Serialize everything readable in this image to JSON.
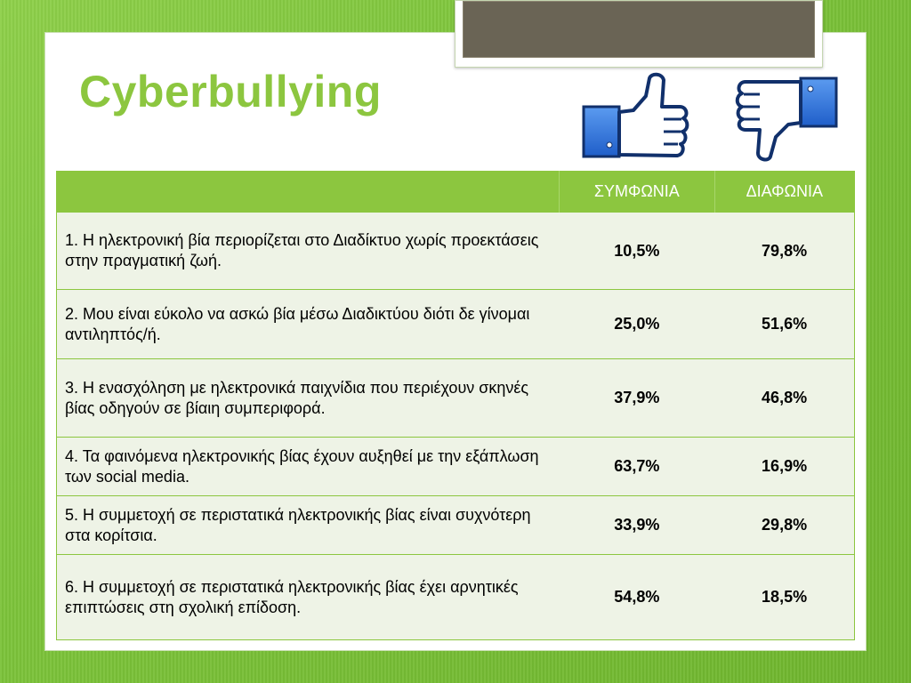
{
  "title": "Cyberbullying",
  "icons": {
    "like": "thumbs-up-icon",
    "dislike": "thumbs-down-icon",
    "accent": "#8cc63f",
    "icon_blue": "#2f6fd6"
  },
  "table": {
    "headers": {
      "statement": "",
      "agree": "ΣΥΜΦΩΝΙΑ",
      "disagree": "ΔΙΑΦΩΝΙΑ"
    },
    "rows": [
      {
        "statement": "1. Η ηλεκτρονική βία περιορίζεται στο Διαδίκτυο χωρίς προεκτάσεις στην πραγματική ζωή.",
        "agree": "10,5%",
        "disagree": "79,8%"
      },
      {
        "statement": "2. Μου είναι εύκολο να ασκώ βία μέσω Διαδικτύου διότι δε γίνομαι αντιληπτός/ή.",
        "agree": "25,0%",
        "disagree": "51,6%"
      },
      {
        "statement": "3. Η ενασχόληση με ηλεκτρονικά παιχνίδια που περιέχουν σκηνές βίας οδηγούν σε βίαιη συμπεριφορά.",
        "agree": "37,9%",
        "disagree": "46,8%"
      },
      {
        "statement": "4. Τα φαινόμενα ηλεκτρονικής βίας έχουν αυξηθεί με την εξάπλωση των social media.",
        "agree": "63,7%",
        "disagree": "16,9%"
      },
      {
        "statement": "5. Η συμμετοχή σε περιστατικά ηλεκτρονικής βίας είναι συχνότερη στα κορίτσια.",
        "agree": "33,9%",
        "disagree": "29,8%"
      },
      {
        "statement": "6. Η συμμετοχή σε περιστατικά ηλεκτρονικής βίας έχει αρνητικές επιπτώσεις στη σχολική επίδοση.",
        "agree": "54,8%",
        "disagree": "18,5%"
      }
    ]
  }
}
